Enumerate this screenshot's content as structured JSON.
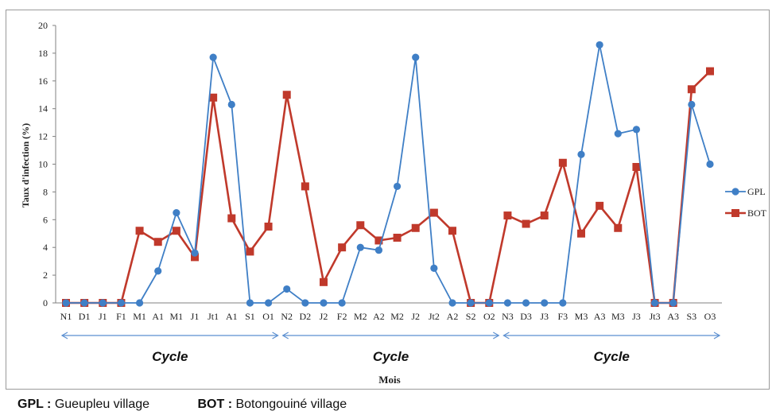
{
  "chart_data": {
    "type": "line",
    "ylabel": "Taux d'infection (%)",
    "xlabel": "Mois",
    "ylim": [
      0,
      20
    ],
    "yticks": [
      0,
      2,
      4,
      6,
      8,
      10,
      12,
      14,
      16,
      18,
      20
    ],
    "grid": false,
    "legend_position": "right",
    "categories": [
      "N1",
      "D1",
      "J1",
      "F1",
      "M1",
      "A1",
      "M1",
      "J1",
      "Jt1",
      "A1",
      "S1",
      "O1",
      "N2",
      "D2",
      "J2",
      "F2",
      "M2",
      "A2",
      "M2",
      "J2",
      "Jt2",
      "A2",
      "S2",
      "O2",
      "N3",
      "D3",
      "J3",
      "F3",
      "M3",
      "A3",
      "M3",
      "J3",
      "Jt3",
      "A3",
      "S3",
      "O3"
    ],
    "series": [
      {
        "name": "GPL",
        "color": "#3f7fc6",
        "marker": "circle",
        "values": [
          0,
          0,
          0,
          0,
          0,
          2.3,
          6.5,
          3.6,
          17.7,
          14.3,
          0,
          0,
          1.0,
          0,
          0,
          0,
          4.0,
          3.8,
          8.4,
          17.7,
          2.5,
          0,
          0,
          0,
          0,
          0,
          0,
          0,
          10.7,
          18.6,
          12.2,
          12.5,
          0,
          0,
          14.3,
          10.0
        ]
      },
      {
        "name": "BOT",
        "color": "#c0392b",
        "marker": "square",
        "values": [
          0,
          0,
          0,
          0,
          5.2,
          4.4,
          5.2,
          3.3,
          14.8,
          6.1,
          3.7,
          5.5,
          15.0,
          8.4,
          1.5,
          4.0,
          5.6,
          4.5,
          4.7,
          5.4,
          6.5,
          5.2,
          0,
          0,
          6.3,
          5.7,
          6.3,
          10.1,
          5.0,
          7.0,
          5.4,
          9.8,
          0,
          0,
          15.4,
          16.7
        ]
      }
    ],
    "annotations": [
      {
        "label": "Cycle",
        "from": "N1",
        "to": "O1"
      },
      {
        "label": "Cycle",
        "from": "N2",
        "to": "O2"
      },
      {
        "label": "Cycle",
        "from": "N3",
        "to": "O3"
      }
    ]
  },
  "footnote": [
    {
      "abbr": "GPL :",
      "text": " Gueupleu village"
    },
    {
      "abbr": "BOT :",
      "text": " Botongouiné village"
    }
  ]
}
